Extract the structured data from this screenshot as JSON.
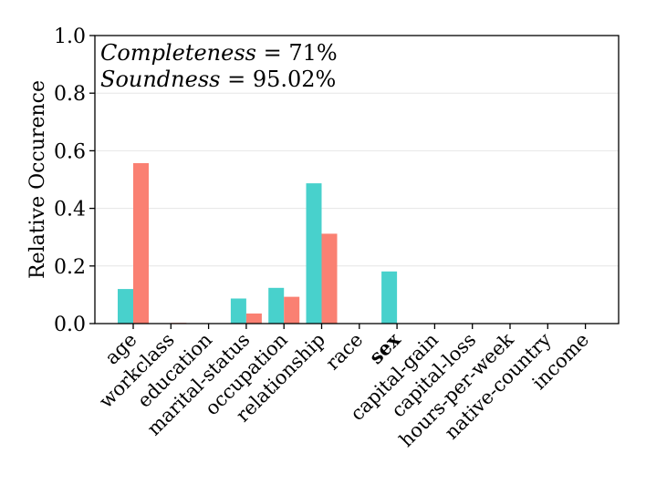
{
  "chart_data": {
    "type": "bar",
    "ylabel": "Relative Occurence",
    "xlabel": "",
    "ylim": [
      0,
      1.0
    ],
    "yticks": [
      "0.0",
      "0.2",
      "0.4",
      "0.6",
      "0.8",
      "1.0"
    ],
    "grid": "horizontal",
    "highlighted_category": "sex",
    "categories": [
      "age",
      "workclass",
      "education",
      "marital-status",
      "occupation",
      "relationship",
      "race",
      "sex",
      "capital-gain",
      "capital-loss",
      "hours-per-week",
      "native-country",
      "income"
    ],
    "series": [
      {
        "color": "#48d1cc",
        "values": [
          0.12,
          0.0,
          0.0,
          0.087,
          0.124,
          0.487,
          0.0,
          0.181,
          0.0,
          0.0,
          0.0,
          0.0,
          0.0
        ]
      },
      {
        "color": "#fa8072",
        "values": [
          0.557,
          0.0025,
          0.0,
          0.035,
          0.093,
          0.312,
          0.0,
          0.0,
          0.0,
          0.0,
          0.0,
          0.0,
          0.0
        ]
      }
    ],
    "annotations": [
      {
        "name": "Completeness",
        "eq": "=",
        "value": "71%"
      },
      {
        "name": "Soundness",
        "eq": "=",
        "value": "95.02%"
      }
    ]
  }
}
